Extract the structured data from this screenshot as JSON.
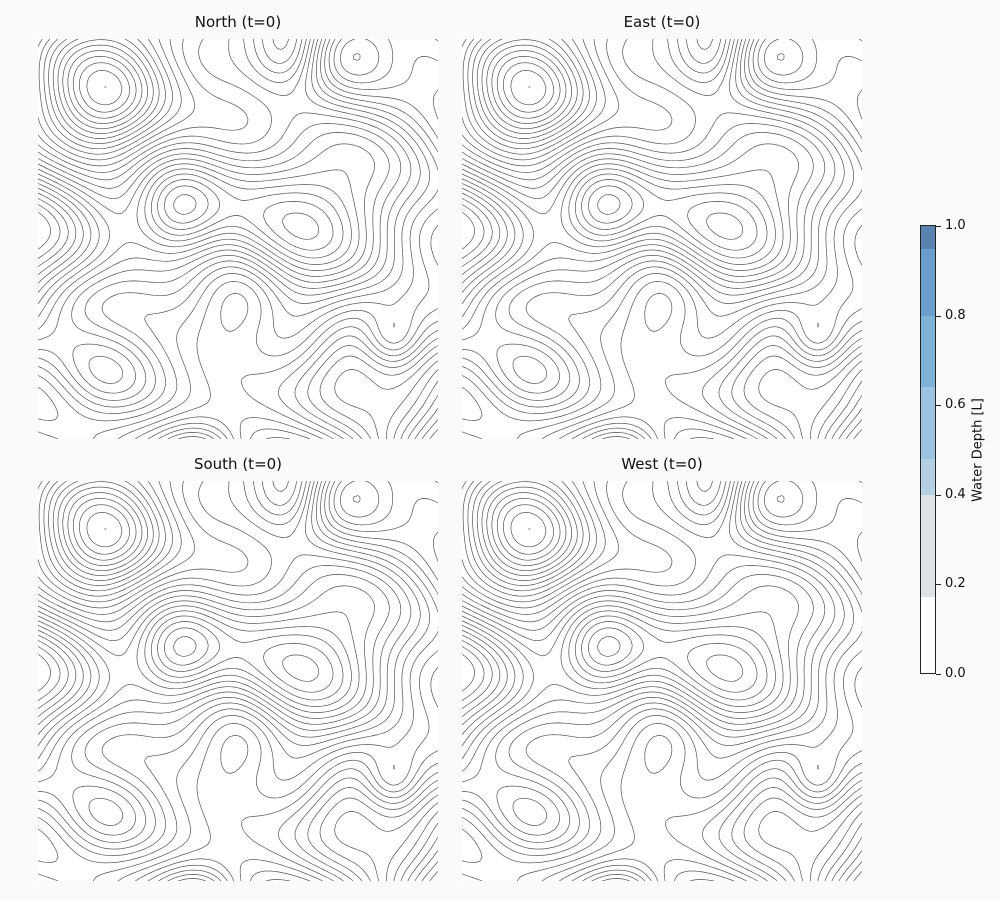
{
  "chart_data": {
    "type": "contour",
    "panels": [
      {
        "title": "North (t=0)",
        "variable": "Water Depth",
        "time": 0
      },
      {
        "title": "East (t=0)",
        "variable": "Water Depth",
        "time": 0
      },
      {
        "title": "South (t=0)",
        "variable": "Water Depth",
        "time": 0
      },
      {
        "title": "West (t=0)",
        "variable": "Water Depth",
        "time": 0
      }
    ],
    "contour_overlay": "terrain elevation",
    "grid": false,
    "axes_visible": false,
    "colorbar": {
      "label": "Water Depth [L]",
      "range": [
        0.0,
        1.0
      ],
      "ticks": [
        0.0,
        0.2,
        0.4,
        0.6,
        0.8,
        1.0
      ],
      "tick_labels": [
        "0.0",
        "0.2",
        "0.4",
        "0.6",
        "0.8",
        "1.0"
      ],
      "placement": "right",
      "colors": [
        "#ffffff",
        "#dde3e8",
        "#b4cfe1",
        "#9ac4e2",
        "#7fb0d6",
        "#6b9ccb",
        "#5b83b2"
      ],
      "color_levels": [
        0.0,
        0.17,
        0.4,
        0.48,
        0.64,
        0.8,
        0.95,
        1.0
      ]
    }
  }
}
